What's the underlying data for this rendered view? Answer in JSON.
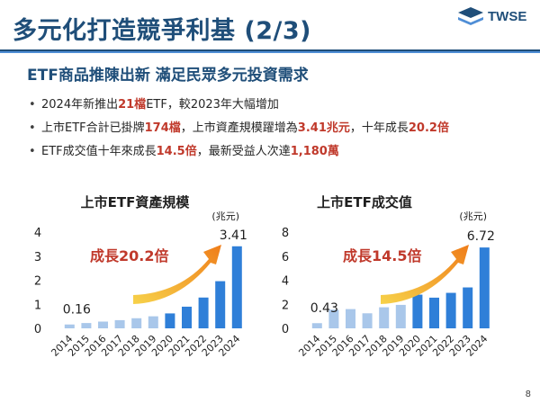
{
  "header": {
    "title": "多元化打造競爭利基 (2/3)",
    "logo_text": "TWSE"
  },
  "section": {
    "subheading": "ETF商品推陳出新 滿足民眾多元投資需求"
  },
  "bullets": [
    {
      "p1": "2024年新推出",
      "h1": "21檔",
      "p2": "ETF，較2023年大幅增加",
      "h2": "",
      "p3": ""
    },
    {
      "p1": "上市ETF合計已掛牌",
      "h1": "174檔",
      "p2": "，上市資產規模躍增為",
      "h2": "3.41兆元",
      "p3": "，十年成長",
      "h3": "20.2倍"
    },
    {
      "p1": "ETF成交值十年來成長",
      "h1": "14.5倍",
      "p2": "，最新受益人次達",
      "h2": "1,180萬",
      "p3": ""
    }
  ],
  "colors": {
    "light_bar": "#a9c7ea",
    "dark_bar": "#2f7fd8",
    "accent_red": "#c0392b",
    "arrow_start": "#f7d24a",
    "arrow_end": "#ef7d1a"
  },
  "chart_data": [
    {
      "type": "bar",
      "title": "上市ETF資產規模",
      "unit": "(兆元)",
      "categories": [
        "2014",
        "2015",
        "2016",
        "2017",
        "2018",
        "2019",
        "2020",
        "2021",
        "2022",
        "2023",
        "2024"
      ],
      "values": [
        0.16,
        0.22,
        0.28,
        0.34,
        0.42,
        0.5,
        0.62,
        0.9,
        1.28,
        1.96,
        3.41
      ],
      "ylim": [
        0,
        4
      ],
      "yticks": [
        "0",
        "1",
        "2",
        "3",
        "4"
      ],
      "labels": {
        "first": "0.16",
        "last": "3.41"
      },
      "growth_text": "成長20.2倍"
    },
    {
      "type": "bar",
      "title": "上市ETF成交值",
      "unit": "(兆元)",
      "categories": [
        "2014",
        "2015",
        "2016",
        "2017",
        "2018",
        "2019",
        "2020",
        "2021",
        "2022",
        "2023",
        "2024"
      ],
      "values": [
        0.43,
        1.55,
        1.6,
        1.25,
        1.75,
        1.95,
        2.8,
        2.55,
        2.95,
        3.4,
        6.72
      ],
      "ylim": [
        0,
        8
      ],
      "yticks": [
        "0",
        "2",
        "4",
        "6",
        "8"
      ],
      "labels": {
        "first": "0.43",
        "last": "6.72"
      },
      "growth_text": "成長14.5倍"
    }
  ],
  "footer": {
    "page_number": "8"
  }
}
